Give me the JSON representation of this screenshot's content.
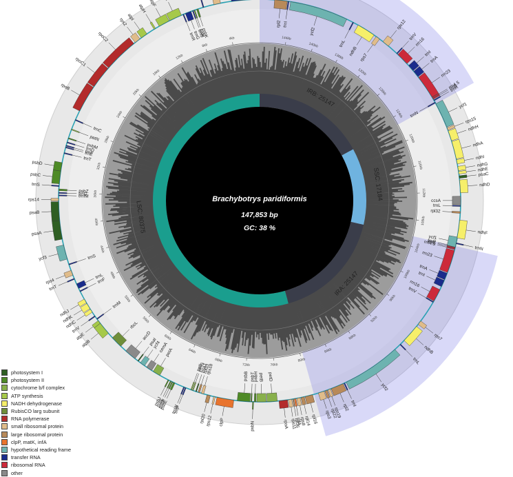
{
  "genome": {
    "species": "Brachybotrys paridiformis",
    "length": "147,853 bp",
    "gc": "GC: 38 %",
    "total_bp": 147853
  },
  "regions": [
    {
      "id": "LSC",
      "label": "LSC: 80375",
      "start": 0,
      "end": 80375,
      "color": "#1a9e8e"
    },
    {
      "id": "IRA",
      "label": "IRA: 25147",
      "start": 80375,
      "end": 105522,
      "color": "#3a3d4a"
    },
    {
      "id": "SSC",
      "label": "SSC: 17184",
      "start": 105522,
      "end": 122706,
      "color": "#6fb3e0"
    },
    {
      "id": "IRB",
      "label": "IRB: 25147",
      "start": 122706,
      "end": 147853,
      "color": "#3a3d4a"
    }
  ],
  "ticks": [
    "4kb",
    "8kb",
    "12kb",
    "16kb",
    "20kb",
    "24kb",
    "28kb",
    "32kb",
    "36kb",
    "40kb",
    "44kb",
    "48kb",
    "52kb",
    "56kb",
    "60kb",
    "64kb",
    "68kb",
    "72kb",
    "76kb",
    "80kb",
    "84kb",
    "88kb",
    "92kb",
    "96kb",
    "100kb",
    "104kb",
    "108kb",
    "112kb",
    "116kb",
    "120kb",
    "124kb",
    "128kb",
    "132kb",
    "136kb",
    "140kb",
    "144kb"
  ],
  "colors": {
    "photosystem I": "#2f5f23",
    "photosystem II": "#4e8a26",
    "cytochrome b/f complex": "#88b04b",
    "ATP synthesis": "#a6c94a",
    "NADH dehydrogenase": "#f6ef6a",
    "RubisCO larg subunit": "#6f8f3a",
    "RNA polymerase": "#b32b2b",
    "small ribosomal protein": "#e0bc8a",
    "large ribosomal protein": "#b88a5a",
    "clpP, matK, infA": "#e8742e",
    "hypothetical reading frame": "#6db3b0",
    "transfer RNA": "#1a2c8c",
    "ribosomal RNA": "#cc2a3a",
    "other": "#8a8a8a"
  },
  "legend": [
    {
      "label": "photosystem I",
      "key": "photosystem I"
    },
    {
      "label": "photosystem II",
      "key": "photosystem II"
    },
    {
      "label": "cytochrome b/f complex",
      "key": "cytochrome b/f complex"
    },
    {
      "label": "ATP synthesis",
      "key": "ATP synthesis"
    },
    {
      "label": "NADH dehydrogenase",
      "key": "NADH dehydrogenase"
    },
    {
      "label": "RubisCO larg subunit",
      "key": "RubisCO larg subunit"
    },
    {
      "label": "RNA polymerase",
      "key": "RNA polymerase"
    },
    {
      "label": "small ribosomal protein",
      "key": "small ribosomal protein"
    },
    {
      "label": "large ribosomal protein",
      "key": "large ribosomal protein"
    },
    {
      "label": "clpP, matK, infA",
      "key": "clpP, matK, infA"
    },
    {
      "label": "hypothetical reading frame",
      "key": "hypothetical reading frame"
    },
    {
      "label": "transfer RNA",
      "key": "transfer RNA"
    },
    {
      "label": "ribosomal RNA",
      "key": "ribosomal RNA"
    },
    {
      "label": "other",
      "key": "other"
    }
  ],
  "genes": [
    {
      "n": "psbA",
      "s": 147853,
      "e": 146800,
      "c": "photosystem II",
      "in": true
    },
    {
      "n": "trnH",
      "s": 147780,
      "e": 147853,
      "c": "transfer RNA",
      "in": true
    },
    {
      "n": "matK",
      "s": 1200,
      "e": 2700,
      "c": "clpP, matK, infA",
      "in": true
    },
    {
      "n": "trnK",
      "s": 600,
      "e": 3300,
      "c": "transfer RNA",
      "in": true
    },
    {
      "n": "rps16",
      "s": 4600,
      "e": 5400,
      "c": "small ribosomal protein",
      "in": true
    },
    {
      "n": "trnQ",
      "s": 6600,
      "e": 6700,
      "c": "transfer RNA",
      "in": true
    },
    {
      "n": "psbK",
      "s": 7300,
      "e": 7500,
      "c": "photosystem II",
      "in": false
    },
    {
      "n": "psbI",
      "s": 7700,
      "e": 7800,
      "c": "photosystem II",
      "in": false
    },
    {
      "n": "trnS",
      "s": 7900,
      "e": 8000,
      "c": "transfer RNA",
      "in": false
    },
    {
      "n": "trnG",
      "s": 8200,
      "e": 8900,
      "c": "transfer RNA",
      "in": false
    },
    {
      "n": "trnR",
      "s": 9100,
      "e": 9200,
      "c": "transfer RNA",
      "in": false
    },
    {
      "n": "atpA",
      "s": 9400,
      "e": 10900,
      "c": "ATP synthesis",
      "in": true
    },
    {
      "n": "atpF",
      "s": 11000,
      "e": 12300,
      "c": "ATP synthesis",
      "in": true
    },
    {
      "n": "atpH",
      "s": 12800,
      "e": 13000,
      "c": "ATP synthesis",
      "in": true
    },
    {
      "n": "atpI",
      "s": 14000,
      "e": 14800,
      "c": "ATP synthesis",
      "in": true
    },
    {
      "n": "rps2",
      "s": 15000,
      "e": 15700,
      "c": "small ribosomal protein",
      "in": true
    },
    {
      "n": "rpoC2",
      "s": 15900,
      "e": 20000,
      "c": "RNA polymerase",
      "in": true
    },
    {
      "n": "rpoC1",
      "s": 20100,
      "e": 22800,
      "c": "RNA polymerase",
      "in": true
    },
    {
      "n": "rpoB",
      "s": 22900,
      "e": 26100,
      "c": "RNA polymerase",
      "in": true
    },
    {
      "n": "trnC",
      "s": 27200,
      "e": 27300,
      "c": "transfer RNA",
      "in": false
    },
    {
      "n": "petN",
      "s": 28400,
      "e": 28500,
      "c": "cytochrome b/f complex",
      "in": false
    },
    {
      "n": "psbM",
      "s": 29500,
      "e": 29600,
      "c": "photosystem II",
      "in": false
    },
    {
      "n": "trnD",
      "s": 30000,
      "e": 30100,
      "c": "transfer RNA",
      "in": false
    },
    {
      "n": "trnY",
      "s": 30400,
      "e": 30500,
      "c": "transfer RNA",
      "in": false
    },
    {
      "n": "trnE",
      "s": 30600,
      "e": 30700,
      "c": "transfer RNA",
      "in": false
    },
    {
      "n": "trnT",
      "s": 31300,
      "e": 31400,
      "c": "transfer RNA",
      "in": false
    },
    {
      "n": "psbD",
      "s": 32500,
      "e": 33500,
      "c": "photosystem II",
      "in": true
    },
    {
      "n": "psbC",
      "s": 33500,
      "e": 35000,
      "c": "photosystem II",
      "in": true
    },
    {
      "n": "trnS",
      "s": 35200,
      "e": 35300,
      "c": "transfer RNA",
      "in": true
    },
    {
      "n": "psbZ",
      "s": 35600,
      "e": 35800,
      "c": "photosystem II",
      "in": false
    },
    {
      "n": "trnG",
      "s": 36000,
      "e": 36100,
      "c": "transfer RNA",
      "in": false
    },
    {
      "n": "trnfM",
      "s": 36300,
      "e": 36400,
      "c": "transfer RNA",
      "in": false
    },
    {
      "n": "rps14",
      "s": 36700,
      "e": 37000,
      "c": "small ribosomal protein",
      "in": true
    },
    {
      "n": "psaB",
      "s": 37100,
      "e": 39300,
      "c": "photosystem I",
      "in": true
    },
    {
      "n": "psaA",
      "s": 39300,
      "e": 41500,
      "c": "photosystem I",
      "in": true
    },
    {
      "n": "ycf3",
      "s": 42200,
      "e": 43900,
      "c": "hypothetical reading frame",
      "in": true
    },
    {
      "n": "trnS",
      "s": 44500,
      "e": 44600,
      "c": "transfer RNA",
      "in": false
    },
    {
      "n": "rps4",
      "s": 45300,
      "e": 45900,
      "c": "small ribosomal protein",
      "in": true
    },
    {
      "n": "trnT",
      "s": 46300,
      "e": 46400,
      "c": "transfer RNA",
      "in": true
    },
    {
      "n": "trnL",
      "s": 47000,
      "e": 47600,
      "c": "transfer RNA",
      "in": false
    },
    {
      "n": "trnF",
      "s": 47900,
      "e": 48000,
      "c": "transfer RNA",
      "in": false
    },
    {
      "n": "ndhJ",
      "s": 49000,
      "e": 49500,
      "c": "NADH dehydrogenase",
      "in": true
    },
    {
      "n": "ndhK",
      "s": 49600,
      "e": 50300,
      "c": "NADH dehydrogenase",
      "in": true
    },
    {
      "n": "ndhC",
      "s": 50400,
      "e": 50800,
      "c": "NADH dehydrogenase",
      "in": true
    },
    {
      "n": "trnV",
      "s": 51300,
      "e": 51400,
      "c": "transfer RNA",
      "in": true
    },
    {
      "n": "trnM",
      "s": 51700,
      "e": 51800,
      "c": "transfer RNA",
      "in": false
    },
    {
      "n": "atpE",
      "s": 52000,
      "e": 52400,
      "c": "ATP synthesis",
      "in": true
    },
    {
      "n": "atpB",
      "s": 52400,
      "e": 53900,
      "c": "ATP synthesis",
      "in": true
    },
    {
      "n": "rbcL",
      "s": 54600,
      "e": 56000,
      "c": "RubisCO larg subunit",
      "in": false
    },
    {
      "n": "accD",
      "s": 56800,
      "e": 58200,
      "c": "other",
      "in": false
    },
    {
      "n": "psaI",
      "s": 58600,
      "e": 58700,
      "c": "photosystem I",
      "in": false
    },
    {
      "n": "ycf4",
      "s": 59000,
      "e": 59600,
      "c": "hypothetical reading frame",
      "in": false
    },
    {
      "n": "cemA",
      "s": 59900,
      "e": 60600,
      "c": "other",
      "in": false
    },
    {
      "n": "petA",
      "s": 60800,
      "e": 61700,
      "c": "cytochrome b/f complex",
      "in": false
    },
    {
      "n": "psbJ",
      "s": 62800,
      "e": 62900,
      "c": "photosystem II",
      "in": true
    },
    {
      "n": "psbL",
      "s": 63100,
      "e": 63200,
      "c": "photosystem II",
      "in": true
    },
    {
      "n": "psbF",
      "s": 63300,
      "e": 63400,
      "c": "photosystem II",
      "in": true
    },
    {
      "n": "psbE",
      "s": 63500,
      "e": 63700,
      "c": "photosystem II",
      "in": true
    },
    {
      "n": "trnW",
      "s": 64800,
      "e": 64900,
      "c": "transfer RNA",
      "in": true
    },
    {
      "n": "trnP",
      "s": 65000,
      "e": 65100,
      "c": "transfer RNA",
      "in": true
    },
    {
      "n": "petL",
      "s": 65700,
      "e": 65800,
      "c": "cytochrome b/f complex",
      "in": false
    },
    {
      "n": "petG",
      "s": 65900,
      "e": 66000,
      "c": "cytochrome b/f complex",
      "in": false
    },
    {
      "n": "psaJ",
      "s": 66300,
      "e": 66400,
      "c": "photosystem I",
      "in": false
    },
    {
      "n": "rpl33",
      "s": 66600,
      "e": 66800,
      "c": "large ribosomal protein",
      "in": false
    },
    {
      "n": "rps18",
      "s": 67000,
      "e": 67300,
      "c": "small ribosomal protein",
      "in": false
    },
    {
      "n": "rpl20",
      "s": 67700,
      "e": 68100,
      "c": "large ribosomal protein",
      "in": true
    },
    {
      "n": "rps12",
      "s": 68500,
      "e": 68700,
      "c": "small ribosomal protein",
      "in": true
    },
    {
      "n": "clpP",
      "s": 68900,
      "e": 70900,
      "c": "clpP, matK, infA",
      "in": true
    },
    {
      "n": "psbB",
      "s": 71300,
      "e": 72800,
      "c": "photosystem II",
      "in": false
    },
    {
      "n": "psbT",
      "s": 72900,
      "e": 73000,
      "c": "photosystem II",
      "in": false
    },
    {
      "n": "psbN",
      "s": 73100,
      "e": 73200,
      "c": "photosystem II",
      "in": true
    },
    {
      "n": "psbH",
      "s": 73300,
      "e": 73500,
      "c": "photosystem II",
      "in": false
    },
    {
      "n": "petB",
      "s": 73600,
      "e": 74700,
      "c": "cytochrome b/f complex",
      "in": false
    },
    {
      "n": "petD",
      "s": 74800,
      "e": 76000,
      "c": "cytochrome b/f complex",
      "in": false
    },
    {
      "n": "rpoA",
      "s": 76200,
      "e": 77200,
      "c": "RNA polymerase",
      "in": true
    },
    {
      "n": "rps11",
      "s": 77300,
      "e": 77700,
      "c": "small ribosomal protein",
      "in": true
    },
    {
      "n": "rpl36",
      "s": 77800,
      "e": 77900,
      "c": "large ribosomal protein",
      "in": true
    },
    {
      "n": "infA",
      "s": 78000,
      "e": 78200,
      "c": "clpP, matK, infA",
      "in": true
    },
    {
      "n": "rps8",
      "s": 78300,
      "e": 78700,
      "c": "small ribosomal protein",
      "in": true
    },
    {
      "n": "rpl14",
      "s": 78800,
      "e": 79200,
      "c": "large ribosomal protein",
      "in": true
    },
    {
      "n": "rpl16",
      "s": 79300,
      "e": 80200,
      "c": "large ribosomal protein",
      "in": true
    },
    {
      "n": "rps3",
      "s": 80900,
      "e": 81600,
      "c": "small ribosomal protein",
      "in": true
    },
    {
      "n": "rpl22",
      "s": 81700,
      "e": 82000,
      "c": "large ribosomal protein",
      "in": true
    },
    {
      "n": "rps19",
      "s": 82100,
      "e": 82400,
      "c": "small ribosomal protein",
      "in": true
    },
    {
      "n": "rpl2",
      "s": 82500,
      "e": 84000,
      "c": "large ribosomal protein",
      "in": true
    },
    {
      "n": "trnI",
      "s": 84100,
      "e": 84200,
      "c": "transfer RNA",
      "in": true
    },
    {
      "n": "ycf2",
      "s": 84400,
      "e": 91300,
      "c": "hypothetical reading frame",
      "in": true
    },
    {
      "n": "trnL",
      "s": 92100,
      "e": 92200,
      "c": "transfer RNA",
      "in": true
    },
    {
      "n": "ndhB",
      "s": 92800,
      "e": 95000,
      "c": "NADH dehydrogenase",
      "in": true
    },
    {
      "n": "rps7",
      "s": 95300,
      "e": 95800,
      "c": "small ribosomal protein",
      "in": true
    },
    {
      "n": "trnV",
      "s": 98400,
      "e": 98500,
      "c": "transfer RNA",
      "in": false
    },
    {
      "n": "rrn16",
      "s": 98600,
      "e": 100100,
      "c": "ribosomal RNA",
      "in": false
    },
    {
      "n": "trnI",
      "s": 100500,
      "e": 101300,
      "c": "transfer RNA",
      "in": false
    },
    {
      "n": "trnA",
      "s": 101400,
      "e": 102200,
      "c": "transfer RNA",
      "in": false
    },
    {
      "n": "rrn23",
      "s": 102300,
      "e": 105000,
      "c": "ribosomal RNA",
      "in": false
    },
    {
      "n": "rrn4.5",
      "s": 105100,
      "e": 105200,
      "c": "ribosomal RNA",
      "in": false
    },
    {
      "n": "rrn5",
      "s": 105250,
      "e": 105350,
      "c": "ribosomal RNA",
      "in": false
    },
    {
      "n": "trnR",
      "s": 105400,
      "e": 105500,
      "c": "transfer RNA",
      "in": false
    },
    {
      "n": "trnN",
      "s": 105800,
      "e": 105900,
      "c": "transfer RNA",
      "in": true
    },
    {
      "n": "ycf1",
      "s": 105400,
      "e": 106600,
      "c": "hypothetical reading frame",
      "in": false
    },
    {
      "n": "ndhF",
      "s": 106500,
      "e": 108600,
      "c": "NADH dehydrogenase",
      "in": true
    },
    {
      "n": "rpl32",
      "s": 109400,
      "e": 109600,
      "c": "large ribosomal protein",
      "in": false
    },
    {
      "n": "trnL",
      "s": 110200,
      "e": 110300,
      "c": "transfer RNA",
      "in": false
    },
    {
      "n": "ccsA",
      "s": 110400,
      "e": 111400,
      "c": "other",
      "in": false
    },
    {
      "n": "ndhD",
      "s": 111800,
      "e": 113300,
      "c": "NADH dehydrogenase",
      "in": true
    },
    {
      "n": "psaC",
      "s": 113500,
      "e": 113800,
      "c": "photosystem I",
      "in": true
    },
    {
      "n": "ndhE",
      "s": 114000,
      "e": 114300,
      "c": "NADH dehydrogenase",
      "in": true
    },
    {
      "n": "ndhG",
      "s": 114400,
      "e": 114900,
      "c": "NADH dehydrogenase",
      "in": true
    },
    {
      "n": "ndhI",
      "s": 115200,
      "e": 115700,
      "c": "NADH dehydrogenase",
      "in": true
    },
    {
      "n": "ndhA",
      "s": 115800,
      "e": 117900,
      "c": "NADH dehydrogenase",
      "in": true
    },
    {
      "n": "ndhH",
      "s": 118000,
      "e": 119200,
      "c": "NADH dehydrogenase",
      "in": true
    },
    {
      "n": "rps15",
      "s": 119300,
      "e": 119600,
      "c": "small ribosomal protein",
      "in": true
    },
    {
      "n": "ycf1",
      "s": 119700,
      "e": 122700,
      "c": "hypothetical reading frame",
      "in": true
    },
    {
      "n": "trnN",
      "s": 122800,
      "e": 122900,
      "c": "transfer RNA",
      "in": false
    },
    {
      "n": "trnR",
      "s": 123100,
      "e": 123200,
      "c": "transfer RNA",
      "in": true
    },
    {
      "n": "rrn5",
      "s": 123300,
      "e": 123400,
      "c": "ribosomal RNA",
      "in": true
    },
    {
      "n": "rrn4.5",
      "s": 123450,
      "e": 123550,
      "c": "ribosomal RNA",
      "in": true
    },
    {
      "n": "rrn23",
      "s": 123600,
      "e": 126400,
      "c": "ribosomal RNA",
      "in": true
    },
    {
      "n": "trnA",
      "s": 126500,
      "e": 127300,
      "c": "transfer RNA",
      "in": true
    },
    {
      "n": "trnI",
      "s": 127400,
      "e": 128200,
      "c": "transfer RNA",
      "in": true
    },
    {
      "n": "rrn16",
      "s": 128500,
      "e": 130000,
      "c": "ribosomal RNA",
      "in": true
    },
    {
      "n": "trnV",
      "s": 130100,
      "e": 130200,
      "c": "transfer RNA",
      "in": true
    },
    {
      "n": "rps12",
      "s": 131500,
      "e": 132300,
      "c": "small ribosomal protein",
      "in": true
    },
    {
      "n": "rps7",
      "s": 132800,
      "e": 133300,
      "c": "small ribosomal protein",
      "in": false
    },
    {
      "n": "ndhB",
      "s": 133600,
      "e": 135800,
      "c": "NADH dehydrogenase",
      "in": false
    },
    {
      "n": "trnL",
      "s": 136400,
      "e": 136500,
      "c": "transfer RNA",
      "in": false
    },
    {
      "n": "ycf2",
      "s": 137300,
      "e": 144200,
      "c": "hypothetical reading frame",
      "in": false
    },
    {
      "n": "trnI",
      "s": 144400,
      "e": 144500,
      "c": "transfer RNA",
      "in": false
    },
    {
      "n": "rpl2",
      "s": 144600,
      "e": 146100,
      "c": "large ribosomal protein",
      "in": false
    }
  ]
}
